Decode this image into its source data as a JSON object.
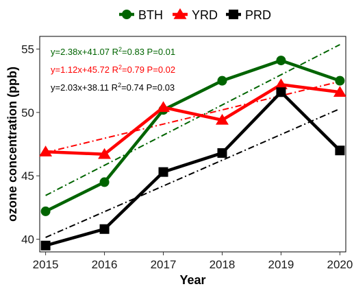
{
  "chart_data": {
    "type": "line",
    "title": "",
    "xlabel": "Year",
    "ylabel": "ozone concentration (ppb)",
    "x": [
      2015,
      2016,
      2017,
      2018,
      2019,
      2020
    ],
    "xlim": [
      2014.9,
      2020.1
    ],
    "ylim": [
      39,
      56
    ],
    "yticks": [
      40,
      45,
      50,
      55
    ],
    "grid": false,
    "legend_position": "top",
    "series": [
      {
        "name": "BTH",
        "color": "#006400",
        "marker": "circle",
        "values": [
          42.2,
          44.5,
          50.2,
          52.5,
          54.1,
          52.5
        ],
        "fit": {
          "slope": 2.38,
          "intercept": 41.07,
          "equation": "y=2.38x+41.07",
          "r2": "0.83",
          "p": "0.01"
        }
      },
      {
        "name": "YRD",
        "color": "#ff0000",
        "marker": "triangle",
        "values": [
          46.9,
          46.7,
          50.4,
          49.4,
          52.2,
          51.6
        ],
        "fit": {
          "slope": 1.12,
          "intercept": 45.72,
          "equation": "y=1.12x+45.72",
          "r2": "0.79",
          "p": "0.02"
        }
      },
      {
        "name": "PRD",
        "color": "#000000",
        "marker": "square",
        "values": [
          39.5,
          40.8,
          45.3,
          46.8,
          51.6,
          47.0
        ],
        "fit": {
          "slope": 2.03,
          "intercept": 38.11,
          "equation": "y=2.03x+38.11",
          "r2": "0.74",
          "p": "0.03"
        }
      }
    ]
  }
}
